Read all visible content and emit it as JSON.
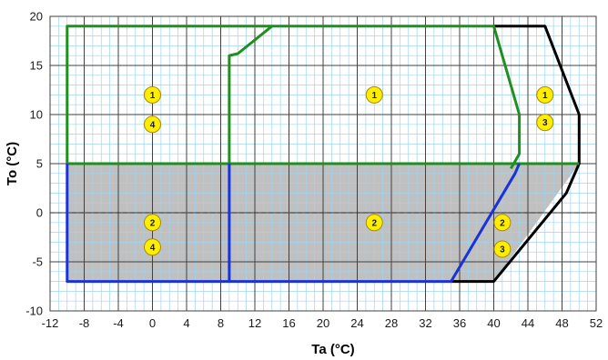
{
  "chart_data": {
    "type": "line",
    "title": "",
    "xlabel": "Ta (°C)",
    "ylabel": "To (°C)",
    "xlim": [
      -12,
      52
    ],
    "ylim": [
      -10,
      20
    ],
    "x_major_step": 4,
    "y_major_step": 5,
    "x_minor_step": 1,
    "y_minor_step": 1,
    "grid": true,
    "x_ticks": [
      "-12",
      "-8",
      "-4",
      "0",
      "4",
      "8",
      "12",
      "16",
      "20",
      "24",
      "28",
      "32",
      "36",
      "40",
      "44",
      "48",
      "52"
    ],
    "y_ticks": [
      "-10",
      "-5",
      "0",
      "5",
      "10",
      "15",
      "20"
    ],
    "shaded_region": {
      "polygon": [
        [
          -10,
          5
        ],
        [
          50,
          5
        ],
        [
          40,
          -7
        ],
        [
          -10,
          -7
        ]
      ],
      "color": "#c0c0c0"
    },
    "series": [
      {
        "color": "#000000",
        "x": [
          40,
          46,
          50,
          50,
          48.5,
          40,
          35
        ],
        "y": [
          19,
          19,
          10,
          5,
          2,
          -7,
          -7
        ]
      },
      {
        "color": "#1f8f1f",
        "x": [
          -10,
          -10,
          40,
          43,
          43,
          42
        ],
        "y": [
          5,
          19,
          19,
          10,
          6,
          4.5
        ]
      },
      {
        "color": "#1f8f1f",
        "x": [
          9,
          9,
          10,
          14
        ],
        "y": [
          5,
          16,
          16.2,
          19
        ]
      },
      {
        "color": "#1f8f1f",
        "x": [
          -10,
          50
        ],
        "y": [
          5,
          5
        ]
      },
      {
        "color": "#1a33d6",
        "x": [
          -10,
          -10,
          35,
          42.5,
          43
        ],
        "y": [
          5,
          -7,
          -7,
          4,
          5
        ]
      },
      {
        "color": "#1a33d6",
        "x": [
          9,
          9
        ],
        "y": [
          5,
          -7
        ]
      }
    ],
    "markers": [
      {
        "label": "1",
        "x": 0,
        "y": 12
      },
      {
        "label": "4",
        "x": 0,
        "y": 9
      },
      {
        "label": "1",
        "x": 26,
        "y": 12
      },
      {
        "label": "1",
        "x": 46,
        "y": 12
      },
      {
        "label": "3",
        "x": 46,
        "y": 9.2
      },
      {
        "label": "2",
        "x": 0,
        "y": -1
      },
      {
        "label": "4",
        "x": 0,
        "y": -3.5
      },
      {
        "label": "2",
        "x": 26,
        "y": -1
      },
      {
        "label": "2",
        "x": 41,
        "y": -1
      },
      {
        "label": "3",
        "x": 41,
        "y": -3.7
      }
    ],
    "marker_fill": "#ffee00",
    "marker_stroke": "#a88a00",
    "minor_grid_color": "#9fd3f2",
    "major_grid_color": "#404040"
  }
}
